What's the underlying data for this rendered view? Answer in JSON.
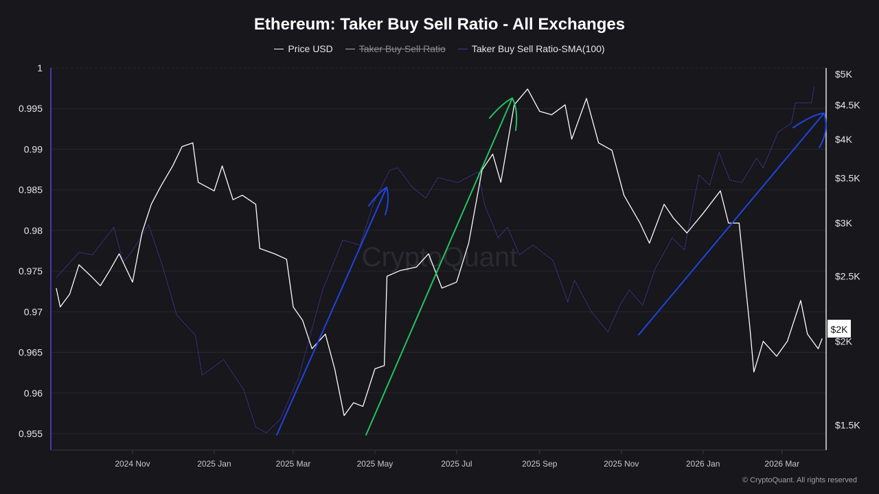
{
  "title": "Ethereum: Taker Buy Sell Ratio - All Exchanges",
  "footer": "© CryptoQuant. All rights reserved",
  "watermark": "CryptoQuant",
  "legend": [
    {
      "label": "Price USD",
      "color": "#ffffff",
      "enabled": true
    },
    {
      "label": "Taker Buy Sell Ratio",
      "color": "#b0b0b8",
      "enabled": false
    },
    {
      "label": "Taker Buy Sell Ratio-SMA(100)",
      "color": "#4a3aa8",
      "enabled": true
    }
  ],
  "chart_data": {
    "type": "line",
    "title": "Ethereum: Taker Buy Sell Ratio - All Exchanges",
    "x_ticks": [
      "2024 Nov",
      "2025 Jan",
      "2025 Mar",
      "2025 May",
      "2025 Jul",
      "2025 Sep",
      "2025 Nov",
      "2026 Jan",
      "2026 Mar"
    ],
    "x_tick_dates": [
      "2024-11-01",
      "2025-01-01",
      "2025-03-01",
      "2025-05-01",
      "2025-07-01",
      "2025-09-01",
      "2025-11-01",
      "2026-01-01",
      "2026-03-01"
    ],
    "left_axis": {
      "ticks": [
        "1",
        "0.995",
        "0.99",
        "0.985",
        "0.98",
        "0.975",
        "0.97",
        "0.965",
        "0.96",
        "0.955"
      ],
      "range": [
        0.9535,
        1.0
      ]
    },
    "right_axis": {
      "scale": "log",
      "ticks": [
        "$5K",
        "$4.5K",
        "$4K",
        "$3.5K",
        "$3K",
        "$2.5K",
        "$2K",
        "$1.5K"
      ],
      "tick_values": [
        5000,
        4500,
        4000,
        3500,
        3000,
        2500,
        2000,
        1500
      ],
      "range": [
        1340,
        5000
      ],
      "current_label": "$2K"
    },
    "grid": true,
    "legend_position": "top-center",
    "series": [
      {
        "name": "Price USD",
        "axis": "right",
        "color": "#ffffff",
        "points": [
          [
            "2024-09-05",
            2400
          ],
          [
            "2024-09-08",
            2250
          ],
          [
            "2024-09-15",
            2350
          ],
          [
            "2024-09-22",
            2600
          ],
          [
            "2024-10-01",
            2500
          ],
          [
            "2024-10-08",
            2420
          ],
          [
            "2024-10-15",
            2550
          ],
          [
            "2024-10-22",
            2700
          ],
          [
            "2024-11-01",
            2450
          ],
          [
            "2024-11-08",
            2900
          ],
          [
            "2024-11-15",
            3200
          ],
          [
            "2024-11-22",
            3400
          ],
          [
            "2024-12-01",
            3650
          ],
          [
            "2024-12-08",
            3900
          ],
          [
            "2024-12-16",
            3950
          ],
          [
            "2024-12-20",
            3450
          ],
          [
            "2025-01-01",
            3350
          ],
          [
            "2025-01-07",
            3650
          ],
          [
            "2025-01-15",
            3250
          ],
          [
            "2025-01-22",
            3300
          ],
          [
            "2025-02-01",
            3200
          ],
          [
            "2025-02-04",
            2750
          ],
          [
            "2025-02-15",
            2700
          ],
          [
            "2025-02-24",
            2650
          ],
          [
            "2025-03-01",
            2250
          ],
          [
            "2025-03-08",
            2150
          ],
          [
            "2025-03-15",
            1950
          ],
          [
            "2025-03-25",
            2050
          ],
          [
            "2025-04-01",
            1820
          ],
          [
            "2025-04-08",
            1550
          ],
          [
            "2025-04-15",
            1620
          ],
          [
            "2025-04-22",
            1600
          ],
          [
            "2025-05-01",
            1820
          ],
          [
            "2025-05-08",
            1840
          ],
          [
            "2025-05-10",
            2500
          ],
          [
            "2025-05-20",
            2550
          ],
          [
            "2025-06-01",
            2580
          ],
          [
            "2025-06-10",
            2700
          ],
          [
            "2025-06-20",
            2400
          ],
          [
            "2025-07-01",
            2450
          ],
          [
            "2025-07-10",
            2800
          ],
          [
            "2025-07-20",
            3600
          ],
          [
            "2025-07-28",
            3800
          ],
          [
            "2025-08-03",
            3450
          ],
          [
            "2025-08-13",
            4500
          ],
          [
            "2025-08-23",
            4750
          ],
          [
            "2025-09-01",
            4400
          ],
          [
            "2025-09-10",
            4350
          ],
          [
            "2025-09-20",
            4500
          ],
          [
            "2025-09-25",
            4000
          ],
          [
            "2025-10-06",
            4600
          ],
          [
            "2025-10-15",
            3950
          ],
          [
            "2025-10-25",
            3850
          ],
          [
            "2025-11-03",
            3300
          ],
          [
            "2025-11-15",
            3000
          ],
          [
            "2025-11-22",
            2800
          ],
          [
            "2025-12-03",
            3200
          ],
          [
            "2025-12-10",
            3050
          ],
          [
            "2025-12-20",
            2900
          ],
          [
            "2026-01-01",
            3100
          ],
          [
            "2026-01-14",
            3350
          ],
          [
            "2026-01-20",
            3000
          ],
          [
            "2026-01-28",
            3000
          ],
          [
            "2026-02-05",
            2100
          ],
          [
            "2026-02-08",
            1800
          ],
          [
            "2026-02-15",
            2000
          ],
          [
            "2026-02-25",
            1900
          ],
          [
            "2026-03-05",
            2000
          ],
          [
            "2026-03-15",
            2300
          ],
          [
            "2026-03-20",
            2050
          ],
          [
            "2026-03-28",
            1950
          ],
          [
            "2026-03-31",
            2020
          ]
        ]
      },
      {
        "name": "Taker Buy Sell Ratio-SMA(100)",
        "axis": "left",
        "color": "#4a3aa8",
        "points": [
          [
            "2024-09-05",
            0.9742
          ],
          [
            "2024-09-22",
            0.9773
          ],
          [
            "2024-10-02",
            0.977
          ],
          [
            "2024-10-18",
            0.9804
          ],
          [
            "2024-10-25",
            0.9761
          ],
          [
            "2024-10-31",
            0.9773
          ],
          [
            "2024-11-13",
            0.9807
          ],
          [
            "2024-11-23",
            0.9758
          ],
          [
            "2024-12-04",
            0.9696
          ],
          [
            "2024-12-18",
            0.9671
          ],
          [
            "2024-12-23",
            0.9622
          ],
          [
            "2025-01-08",
            0.9641
          ],
          [
            "2025-01-23",
            0.9604
          ],
          [
            "2025-02-01",
            0.9558
          ],
          [
            "2025-02-09",
            0.9551
          ],
          [
            "2025-02-19",
            0.9567
          ],
          [
            "2025-03-05",
            0.9619
          ],
          [
            "2025-03-23",
            0.9727
          ],
          [
            "2025-04-07",
            0.9788
          ],
          [
            "2025-04-20",
            0.9782
          ],
          [
            "2025-04-30",
            0.9834
          ],
          [
            "2025-05-12",
            0.9874
          ],
          [
            "2025-05-18",
            0.9877
          ],
          [
            "2025-05-29",
            0.9853
          ],
          [
            "2025-06-08",
            0.984
          ],
          [
            "2025-06-17",
            0.9865
          ],
          [
            "2025-07-02",
            0.9859
          ],
          [
            "2025-07-17",
            0.9872
          ],
          [
            "2025-07-22",
            0.9831
          ],
          [
            "2025-08-01",
            0.9791
          ],
          [
            "2025-08-08",
            0.9804
          ],
          [
            "2025-08-17",
            0.977
          ],
          [
            "2025-08-27",
            0.9782
          ],
          [
            "2025-09-11",
            0.9763
          ],
          [
            "2025-09-22",
            0.9712
          ],
          [
            "2025-09-27",
            0.9739
          ],
          [
            "2025-10-10",
            0.9699
          ],
          [
            "2025-10-22",
            0.9675
          ],
          [
            "2025-10-31",
            0.9708
          ],
          [
            "2025-11-07",
            0.9727
          ],
          [
            "2025-11-17",
            0.9708
          ],
          [
            "2025-11-26",
            0.9752
          ],
          [
            "2025-12-09",
            0.9791
          ],
          [
            "2025-12-18",
            0.9776
          ],
          [
            "2025-12-29",
            0.9868
          ],
          [
            "2026-01-06",
            0.9856
          ],
          [
            "2026-01-13",
            0.9896
          ],
          [
            "2026-01-21",
            0.9862
          ],
          [
            "2026-01-30",
            0.9859
          ],
          [
            "2026-02-10",
            0.9889
          ],
          [
            "2026-02-15",
            0.9877
          ],
          [
            "2026-02-26",
            0.9921
          ],
          [
            "2026-03-08",
            0.9932
          ],
          [
            "2026-03-11",
            0.9957
          ],
          [
            "2026-03-23",
            0.9957
          ],
          [
            "2026-03-25",
            0.9977
          ]
        ]
      }
    ]
  }
}
